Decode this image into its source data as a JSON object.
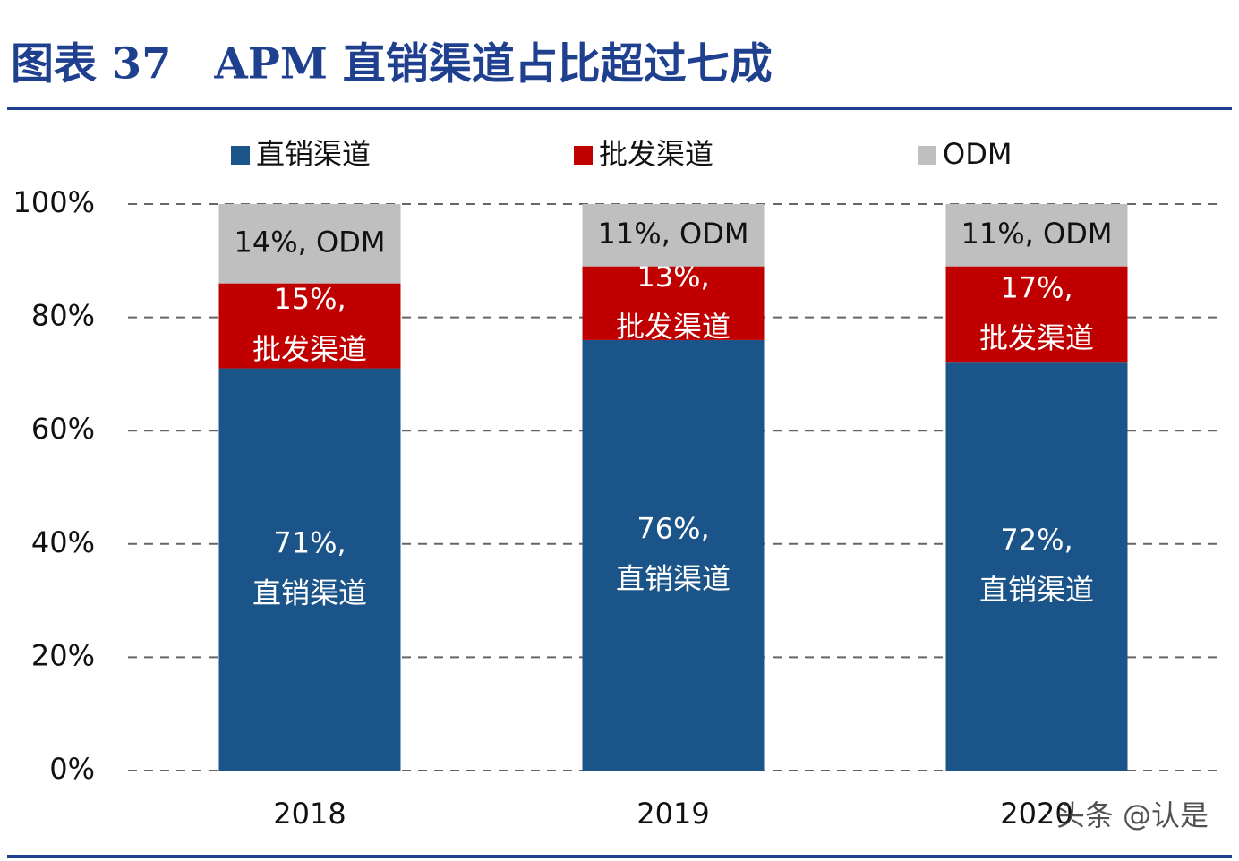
{
  "chart_data": {
    "type": "stacked_bar",
    "title": "图表 37　APM 直销渠道占比超过七成",
    "categories": [
      "2018",
      "2019",
      "2020"
    ],
    "series": [
      {
        "name": "直销渠道",
        "color": "#1a5489",
        "values": [
          71,
          76,
          72
        ],
        "value_labels": [
          [
            "71%,",
            "直销渠道"
          ],
          [
            "76%,",
            "直销渠道"
          ],
          [
            "72%,",
            "直销渠道"
          ]
        ]
      },
      {
        "name": "批发渠道",
        "color": "#c00000",
        "values": [
          15,
          13,
          17
        ],
        "value_labels": [
          [
            "15%,",
            "批发渠道"
          ],
          [
            "13%,",
            "批发渠道"
          ],
          [
            "17%,",
            "批发渠道"
          ]
        ]
      },
      {
        "name": "ODM",
        "color": "#bfbfbf",
        "values": [
          14,
          11,
          11
        ],
        "value_labels": [
          [
            "14%, ODM"
          ],
          [
            "11%, ODM"
          ],
          [
            "11%, ODM"
          ]
        ]
      }
    ],
    "ylim": [
      0,
      100
    ],
    "yticks": [
      {
        "value": 0,
        "label": "0%"
      },
      {
        "value": 20,
        "label": "20%"
      },
      {
        "value": 40,
        "label": "40%"
      },
      {
        "value": 60,
        "label": "60%"
      },
      {
        "value": 80,
        "label": "80%"
      },
      {
        "value": 100,
        "label": "100%"
      }
    ],
    "grid": true,
    "watermark": "头条 @认是"
  }
}
